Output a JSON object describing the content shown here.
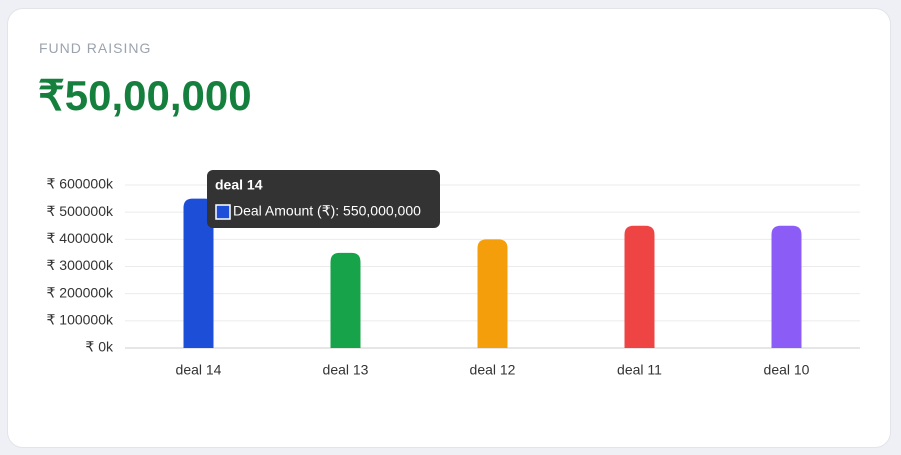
{
  "header": {
    "label": "FUND RAISING",
    "amount": "₹50,00,000"
  },
  "chart_data": {
    "type": "bar",
    "categories": [
      "deal 14",
      "deal 13",
      "deal 12",
      "deal 11",
      "deal 10"
    ],
    "series": [
      {
        "name": "Deal Amount (₹)",
        "colors": [
          "#1d4ed8",
          "#16a34a",
          "#f59e0b",
          "#ef4444",
          "#8b5cf6"
        ],
        "values": [
          550000000,
          350000000,
          400000000,
          450000000,
          450000000
        ]
      }
    ],
    "ylim": [
      0,
      600000000
    ],
    "yticks": [
      {
        "value": 0,
        "label": "₹ 0k"
      },
      {
        "value": 100000000,
        "label": "₹ 100000k"
      },
      {
        "value": 200000000,
        "label": "₹ 200000k"
      },
      {
        "value": 300000000,
        "label": "₹ 300000k"
      },
      {
        "value": 400000000,
        "label": "₹ 400000k"
      },
      {
        "value": 500000000,
        "label": "₹ 500000k"
      },
      {
        "value": 600000000,
        "label": "₹ 600000k"
      }
    ],
    "grid": true,
    "tooltip": {
      "title": "deal 14",
      "label": "Deal Amount (₹): 550,000,000"
    }
  }
}
